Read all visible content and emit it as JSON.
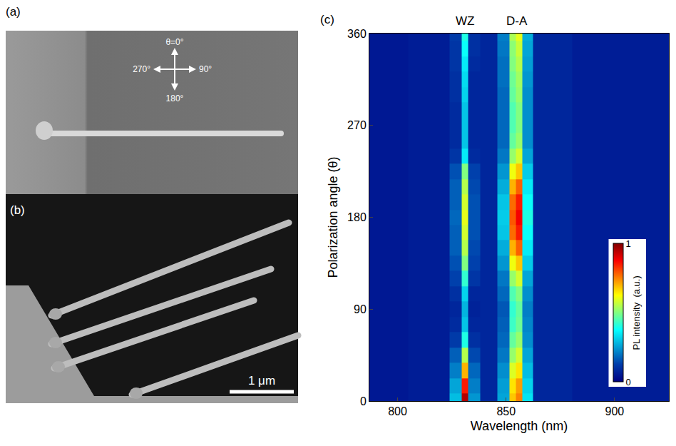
{
  "panels": {
    "a": {
      "label": "(a)",
      "polarization_labels": {
        "top": "θ=0°",
        "right": "90°",
        "bottom": "180°",
        "left": "270°"
      }
    },
    "b": {
      "label": "(b)",
      "scale_bar": "1 μm"
    }
  },
  "chart_data": {
    "type": "heatmap",
    "panel_label": "(c)",
    "x_label": "Wavelength (nm)",
    "y_label": "Polarization angle (θ)",
    "annotations": [
      {
        "text": "WZ",
        "x": 831
      },
      {
        "text": "D-A",
        "x": 855
      }
    ],
    "x": [
      790,
      820,
      828,
      831,
      834,
      842,
      850,
      853,
      856,
      859,
      866,
      895,
      920
    ],
    "y": [
      0,
      15,
      30,
      45,
      60,
      75,
      90,
      105,
      120,
      135,
      150,
      165,
      180,
      195,
      210,
      225,
      240,
      255,
      270,
      285,
      300,
      315,
      330,
      345,
      360
    ],
    "z": [
      [
        0.05,
        0.06,
        0.29,
        0.95,
        0.24,
        0.08,
        0.26,
        0.68,
        0.75,
        0.34,
        0.08,
        0.06,
        0.06
      ],
      [
        0.05,
        0.06,
        0.26,
        0.85,
        0.21,
        0.08,
        0.25,
        0.65,
        0.72,
        0.32,
        0.08,
        0.06,
        0.06
      ],
      [
        0.05,
        0.06,
        0.21,
        0.7,
        0.18,
        0.08,
        0.23,
        0.59,
        0.65,
        0.29,
        0.08,
        0.06,
        0.06
      ],
      [
        0.05,
        0.06,
        0.17,
        0.55,
        0.14,
        0.08,
        0.2,
        0.52,
        0.58,
        0.26,
        0.08,
        0.06,
        0.06
      ],
      [
        0.05,
        0.06,
        0.12,
        0.4,
        0.1,
        0.08,
        0.18,
        0.47,
        0.52,
        0.23,
        0.08,
        0.06,
        0.06
      ],
      [
        0.05,
        0.06,
        0.09,
        0.3,
        0.08,
        0.08,
        0.17,
        0.43,
        0.48,
        0.22,
        0.08,
        0.06,
        0.06
      ],
      [
        0.05,
        0.06,
        0.08,
        0.28,
        0.07,
        0.08,
        0.16,
        0.42,
        0.47,
        0.21,
        0.08,
        0.06,
        0.06
      ],
      [
        0.05,
        0.06,
        0.1,
        0.32,
        0.08,
        0.08,
        0.18,
        0.45,
        0.5,
        0.23,
        0.08,
        0.06,
        0.06
      ],
      [
        0.05,
        0.06,
        0.13,
        0.42,
        0.11,
        0.08,
        0.2,
        0.52,
        0.58,
        0.26,
        0.08,
        0.06,
        0.06
      ],
      [
        0.05,
        0.06,
        0.15,
        0.5,
        0.13,
        0.08,
        0.24,
        0.61,
        0.68,
        0.31,
        0.08,
        0.06,
        0.06
      ],
      [
        0.05,
        0.06,
        0.17,
        0.55,
        0.14,
        0.08,
        0.27,
        0.7,
        0.78,
        0.35,
        0.08,
        0.06,
        0.06
      ],
      [
        0.05,
        0.06,
        0.17,
        0.58,
        0.15,
        0.08,
        0.3,
        0.77,
        0.85,
        0.38,
        0.08,
        0.06,
        0.06
      ],
      [
        0.05,
        0.06,
        0.18,
        0.6,
        0.15,
        0.08,
        0.31,
        0.79,
        0.88,
        0.4,
        0.08,
        0.06,
        0.06
      ],
      [
        0.05,
        0.06,
        0.17,
        0.58,
        0.15,
        0.08,
        0.3,
        0.77,
        0.85,
        0.38,
        0.08,
        0.06,
        0.06
      ],
      [
        0.05,
        0.06,
        0.17,
        0.55,
        0.14,
        0.08,
        0.27,
        0.7,
        0.78,
        0.35,
        0.08,
        0.06,
        0.06
      ],
      [
        0.05,
        0.06,
        0.15,
        0.5,
        0.13,
        0.08,
        0.24,
        0.61,
        0.68,
        0.31,
        0.08,
        0.06,
        0.06
      ],
      [
        0.05,
        0.06,
        0.11,
        0.35,
        0.09,
        0.08,
        0.2,
        0.52,
        0.58,
        0.26,
        0.08,
        0.06,
        0.06
      ],
      [
        0.05,
        0.06,
        0.09,
        0.3,
        0.08,
        0.08,
        0.18,
        0.47,
        0.52,
        0.23,
        0.08,
        0.06,
        0.06
      ],
      [
        0.05,
        0.06,
        0.09,
        0.3,
        0.08,
        0.08,
        0.18,
        0.45,
        0.5,
        0.23,
        0.08,
        0.06,
        0.06
      ],
      [
        0.05,
        0.06,
        0.09,
        0.3,
        0.08,
        0.08,
        0.18,
        0.45,
        0.5,
        0.23,
        0.08,
        0.06,
        0.06
      ],
      [
        0.05,
        0.06,
        0.1,
        0.32,
        0.08,
        0.08,
        0.18,
        0.47,
        0.52,
        0.23,
        0.08,
        0.06,
        0.06
      ],
      [
        0.05,
        0.06,
        0.1,
        0.33,
        0.08,
        0.08,
        0.19,
        0.48,
        0.53,
        0.24,
        0.08,
        0.06,
        0.06
      ],
      [
        0.05,
        0.06,
        0.11,
        0.35,
        0.09,
        0.08,
        0.19,
        0.5,
        0.55,
        0.25,
        0.08,
        0.06,
        0.06
      ],
      [
        0.05,
        0.06,
        0.11,
        0.38,
        0.1,
        0.08,
        0.2,
        0.51,
        0.57,
        0.26,
        0.08,
        0.06,
        0.06
      ],
      [
        0.05,
        0.06,
        0.12,
        0.4,
        0.1,
        0.08,
        0.21,
        0.54,
        0.6,
        0.27,
        0.08,
        0.06,
        0.06
      ]
    ],
    "xlim": [
      787,
      925
    ],
    "xticks": [
      800,
      850,
      900
    ],
    "ylim": [
      0,
      360
    ],
    "yticks": [
      0,
      90,
      180,
      270,
      360
    ],
    "colorbar": {
      "title": "PL intensity  (a.u.)",
      "range": [
        0,
        1
      ],
      "ticks": [
        0,
        1
      ]
    }
  }
}
